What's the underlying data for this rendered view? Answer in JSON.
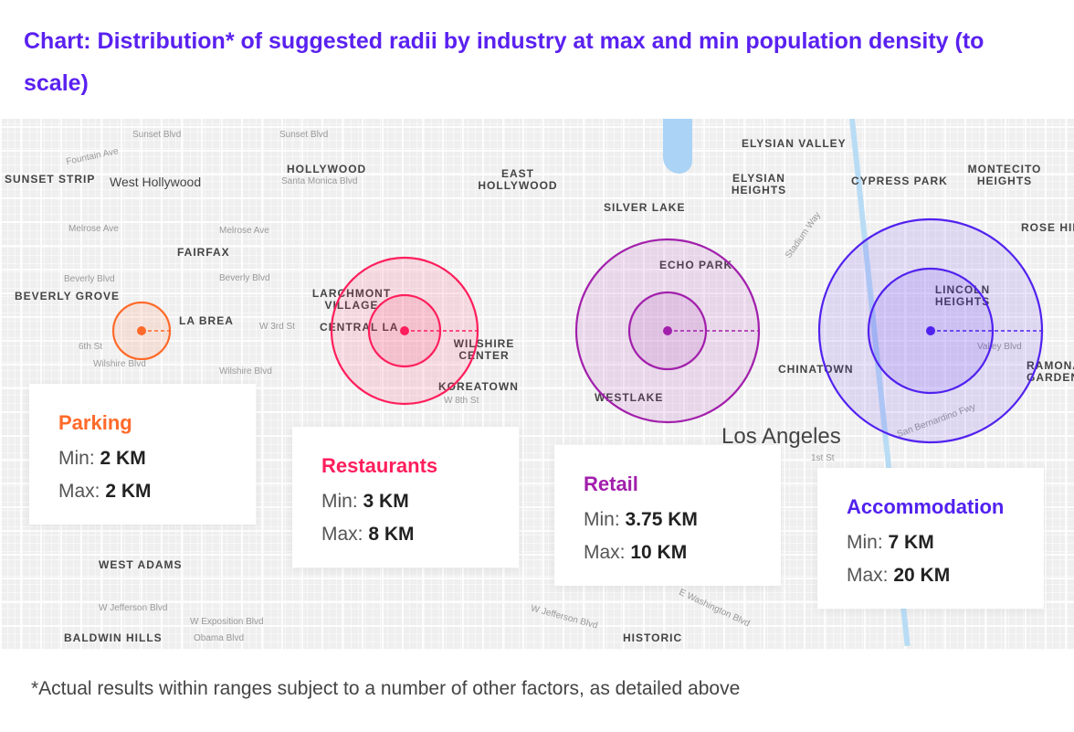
{
  "title": "Chart: Distribution* of suggested radii by industry at max and min population density (to scale)",
  "footnote": "*Actual results within ranges subject to a number of other factors, as detailed above",
  "min_label": "Min:",
  "max_label": "Max:",
  "industries": [
    {
      "name": "Parking",
      "min": "2 KM",
      "max": "2 KM",
      "min_km": 2,
      "max_km": 2,
      "color": "#ff6a2a"
    },
    {
      "name": "Restaurants",
      "min": "3 KM",
      "max": "8 KM",
      "min_km": 3,
      "max_km": 8,
      "color": "#ff1e5c"
    },
    {
      "name": "Retail",
      "min": "3.75 KM",
      "max": "10 KM",
      "min_km": 3.75,
      "max_km": 10,
      "color": "#a21fac"
    },
    {
      "name": "Accommodation",
      "min": "7 KM",
      "max": "20 KM",
      "min_km": 7,
      "max_km": 20,
      "color": "#5121ef"
    }
  ],
  "map": {
    "city": "Los Angeles",
    "west_hollywood": "West Hollywood",
    "neighborhoods": [
      "SUNSET STRIP",
      "HOLLYWOOD",
      "EAST HOLLYWOOD",
      "ELYSIAN VALLEY",
      "ELYSIAN HEIGHTS",
      "CYPRESS PARK",
      "MONTECITO HEIGHTS",
      "SILVER LAKE",
      "FAIRFAX",
      "ROSE HILL",
      "ECHO PARK",
      "LARCHMONT VILLAGE",
      "BEVERLY GROVE",
      "LA BREA",
      "CENTRAL LA",
      "LINCOLN HEIGHTS",
      "WILSHIRE CENTER",
      "CHINATOWN",
      "KOREATOWN",
      "WESTLAKE",
      "WEST ADAMS",
      "RAMONA GARDENS",
      "HISTORIC",
      "BALDWIN HILLS"
    ],
    "streets": [
      "Sunset Blvd",
      "Sunset Blvd",
      "Fountain Ave",
      "Santa Monica Blvd",
      "Melrose Ave",
      "Melrose Ave",
      "Beverly Blvd",
      "Beverly Blvd",
      "W 3rd St",
      "6th St",
      "Wilshire Blvd",
      "Wilshire Blvd",
      "W 8th St",
      "W Jefferson Blvd",
      "W Exposition Blvd",
      "Obama Blvd",
      "Valley Blvd",
      "San Bernardino Fwy",
      "1st St",
      "E Washington Blvd",
      "W Jefferson Blvd",
      "Stadium Way"
    ]
  }
}
